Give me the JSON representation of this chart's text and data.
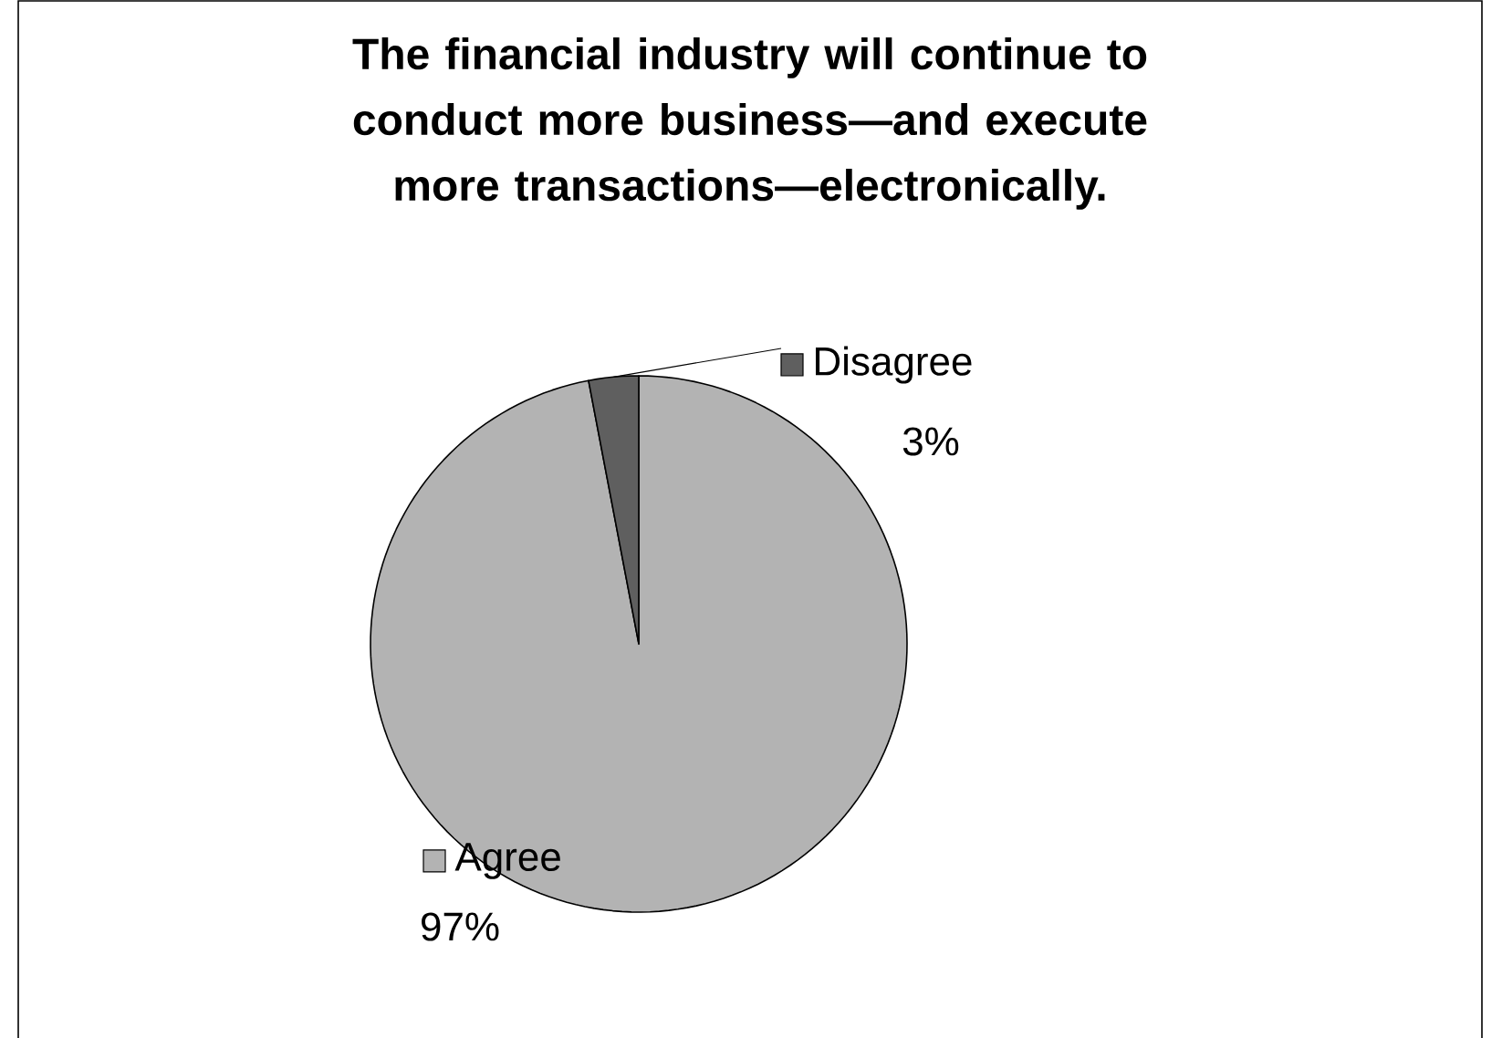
{
  "chart_data": {
    "type": "pie",
    "title": "The financial industry will continue to conduct more business—and execute more transactions—electronically.",
    "categories": [
      "Agree",
      "Disagree"
    ],
    "values": [
      97,
      3
    ],
    "colors": [
      "#b3b3b3",
      "#5f5f5f"
    ],
    "value_labels": [
      "97%",
      "3%"
    ],
    "legend": "center"
  }
}
